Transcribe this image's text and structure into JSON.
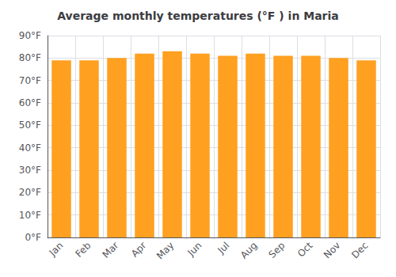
{
  "chart_data": {
    "type": "bar",
    "title": "Average monthly temperatures (°F ) in Maria",
    "categories": [
      "Jan",
      "Feb",
      "Mar",
      "Apr",
      "May",
      "Jun",
      "Jul",
      "Aug",
      "Sep",
      "Oct",
      "Nov",
      "Dec"
    ],
    "values": [
      79,
      79,
      80,
      82,
      83,
      82,
      81,
      82,
      81,
      81,
      80,
      79
    ],
    "color": "#FFA020",
    "ylim": [
      0,
      90
    ],
    "yticks": [
      {
        "value": 0,
        "label": "0°F"
      },
      {
        "value": 10,
        "label": "10°F"
      },
      {
        "value": 20,
        "label": "20°F"
      },
      {
        "value": 30,
        "label": "30°F"
      },
      {
        "value": 40,
        "label": "40°F"
      },
      {
        "value": 50,
        "label": "50°F"
      },
      {
        "value": 60,
        "label": "60°F"
      },
      {
        "value": 70,
        "label": "70°F"
      },
      {
        "value": 80,
        "label": "80°F"
      },
      {
        "value": 90,
        "label": "90°F"
      }
    ],
    "grid": true
  }
}
